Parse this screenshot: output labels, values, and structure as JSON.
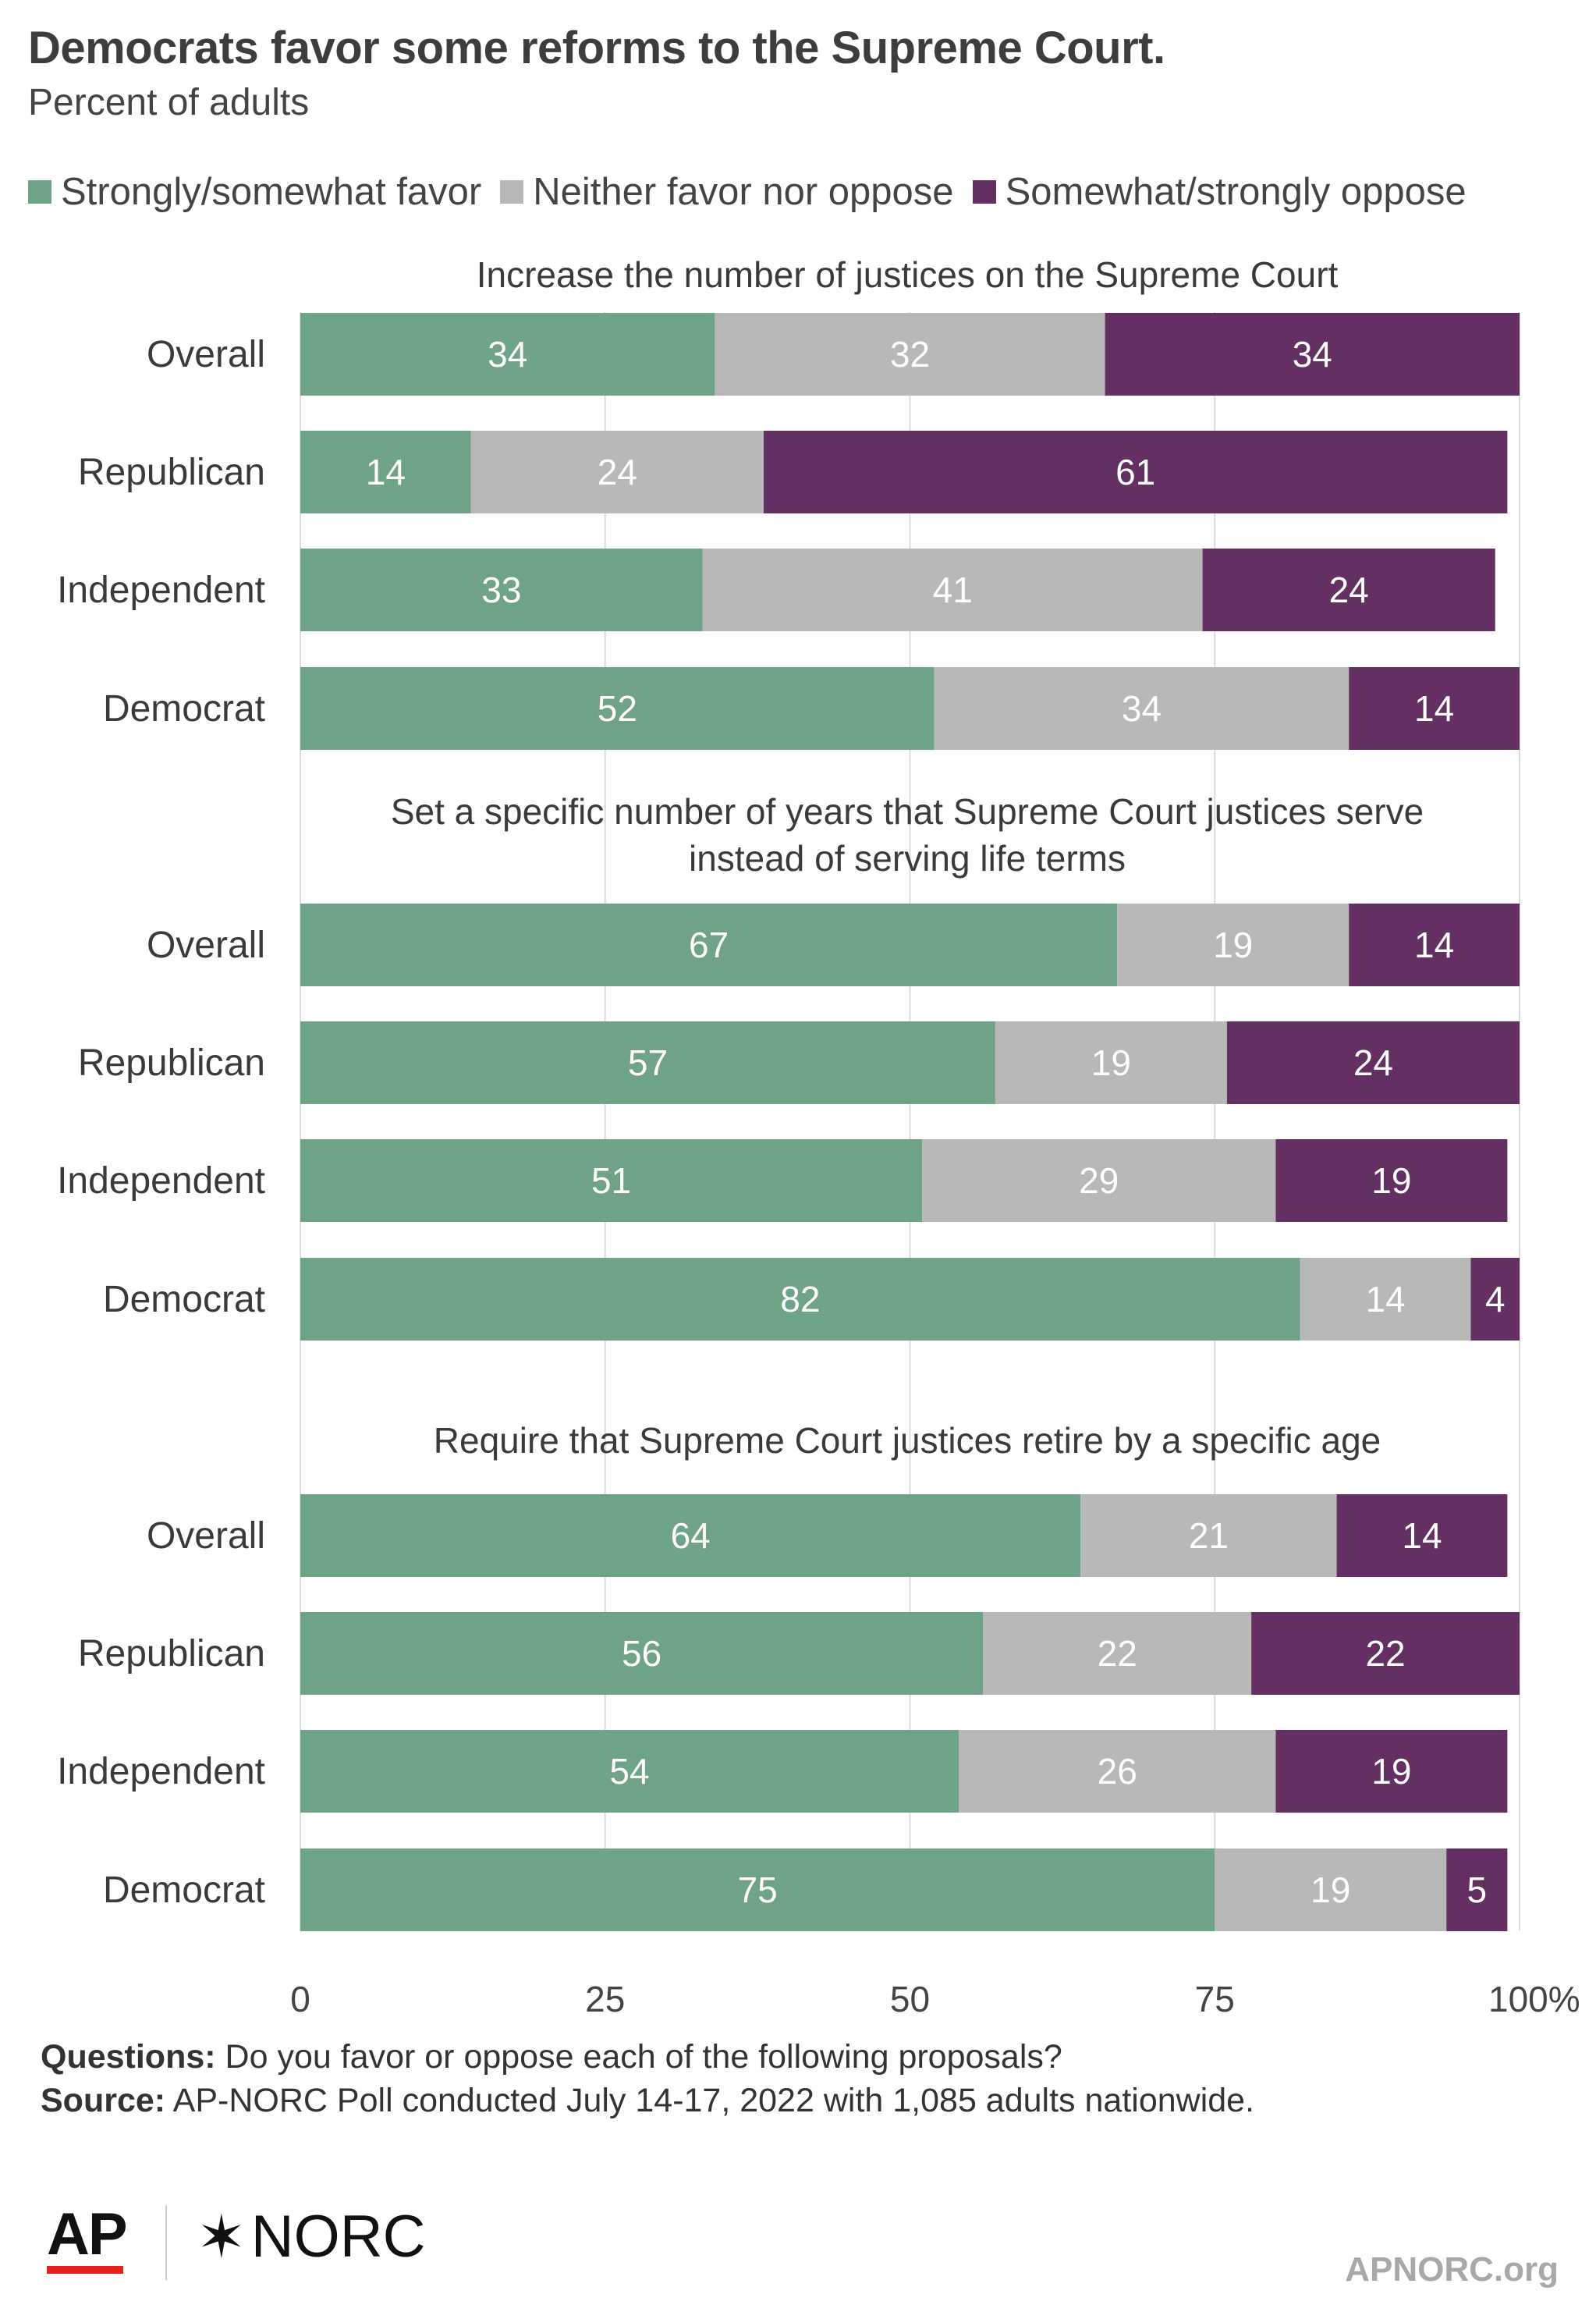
{
  "header": {
    "title": "Democrats favor some reforms to the Supreme Court.",
    "subtitle": "Percent of adults"
  },
  "legend": [
    {
      "label": "Strongly/somewhat favor",
      "color": "#6fa387"
    },
    {
      "label": "Neither favor nor oppose",
      "color": "#b8b8b8"
    },
    {
      "label": "Somewhat/strongly oppose",
      "color": "#642f62"
    }
  ],
  "chart_data": {
    "type": "bar",
    "orientation": "horizontal",
    "stacked": true,
    "title": "Democrats favor some reforms to the Supreme Court.",
    "subtitle": "Percent of adults",
    "xlim": [
      0,
      100
    ],
    "x_ticks": [
      "0",
      "25",
      "50",
      "75",
      "100%"
    ],
    "grid": true,
    "legend_position": "top",
    "series_names": [
      "Strongly/somewhat favor",
      "Neither favor nor oppose",
      "Somewhat/strongly oppose"
    ],
    "colors": [
      "#6fa387",
      "#b8b8b8",
      "#642f62"
    ],
    "panels": [
      {
        "title_lines": [
          "Increase the number of justices on the Supreme Court"
        ],
        "categories": [
          "Overall",
          "Republican",
          "Independent",
          "Democrat"
        ],
        "series": [
          {
            "name": "Strongly/somewhat favor",
            "values": [
              34,
              14,
              33,
              52
            ]
          },
          {
            "name": "Neither favor nor oppose",
            "values": [
              32,
              24,
              41,
              34
            ]
          },
          {
            "name": "Somewhat/strongly oppose",
            "values": [
              34,
              61,
              24,
              14
            ]
          }
        ]
      },
      {
        "title_lines": [
          "Set a specific number of years that Supreme Court justices serve",
          "instead of serving life terms"
        ],
        "categories": [
          "Overall",
          "Republican",
          "Independent",
          "Democrat"
        ],
        "series": [
          {
            "name": "Strongly/somewhat favor",
            "values": [
              67,
              57,
              51,
              82
            ]
          },
          {
            "name": "Neither favor nor oppose",
            "values": [
              19,
              19,
              29,
              14
            ]
          },
          {
            "name": "Somewhat/strongly oppose",
            "values": [
              14,
              24,
              19,
              4
            ]
          }
        ]
      },
      {
        "title_lines": [
          "Require that Supreme Court justices retire by a specific age"
        ],
        "categories": [
          "Overall",
          "Republican",
          "Independent",
          "Democrat"
        ],
        "series": [
          {
            "name": "Strongly/somewhat favor",
            "values": [
              64,
              56,
              54,
              75
            ]
          },
          {
            "name": "Neither favor nor oppose",
            "values": [
              21,
              22,
              26,
              19
            ]
          },
          {
            "name": "Somewhat/strongly oppose",
            "values": [
              14,
              22,
              19,
              5
            ]
          }
        ]
      }
    ]
  },
  "footer": {
    "questions_label": "Questions:",
    "questions_text": " Do you favor or oppose each of the following proposals?",
    "source_label": "Source:",
    "source_text": " AP-NORC Poll conducted July 14-17, 2022 with 1,085 adults nationwide.",
    "logo_ap": "AP",
    "logo_norc": "NORC",
    "logo_norc_mark": "✶",
    "site": "APNORC.org"
  }
}
